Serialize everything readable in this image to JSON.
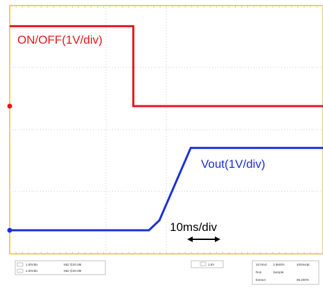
{
  "chart_data": {
    "type": "line",
    "title": "",
    "xlabel": "",
    "ylabel": "",
    "time_scale": "10ms/div",
    "x_unit": "ms",
    "xlim": [
      -45,
      45
    ],
    "grid": true,
    "series": [
      {
        "name": "ON/OFF(1V/div)",
        "color": "#e8141b",
        "scale": "1V/div",
        "x": [
          -45,
          -9.5,
          -9.5,
          45
        ],
        "y": [
          3.2,
          3.2,
          0,
          0
        ]
      },
      {
        "name": "Vout(1V/div)",
        "color": "#1a2fd6",
        "scale": "1V/div",
        "x": [
          -45,
          -5,
          -2,
          7,
          8.5,
          45
        ],
        "y": [
          0,
          0,
          0.4,
          3.3,
          3.3,
          3.3
        ]
      }
    ],
    "annotations": {
      "red_label": "ON/OFF(1V/div)",
      "blue_label": "Vout(1V/div)",
      "time_label": "10ms/div",
      "arrow": "double-headed"
    }
  },
  "status_bar": {
    "left_line1": "1.00Vdiv",
    "left_line1_b": "MΩ Ⓠ20.0M",
    "left_line2": "1.00Vdiv",
    "left_line2_b": "MΩ Ⓠ20.0M",
    "middle": "1.5V",
    "right_row1": [
      "10.0ms/",
      "2.5MS/s",
      "400ms/pt"
    ],
    "right_row2": [
      "Run",
      "Sample"
    ],
    "right_row3": [
      "Extract",
      "95.200%"
    ]
  },
  "colors": {
    "red": "#e8141b",
    "blue": "#1a2fd6",
    "frame": "#e6c34a",
    "grid": "#c9c9c9"
  }
}
